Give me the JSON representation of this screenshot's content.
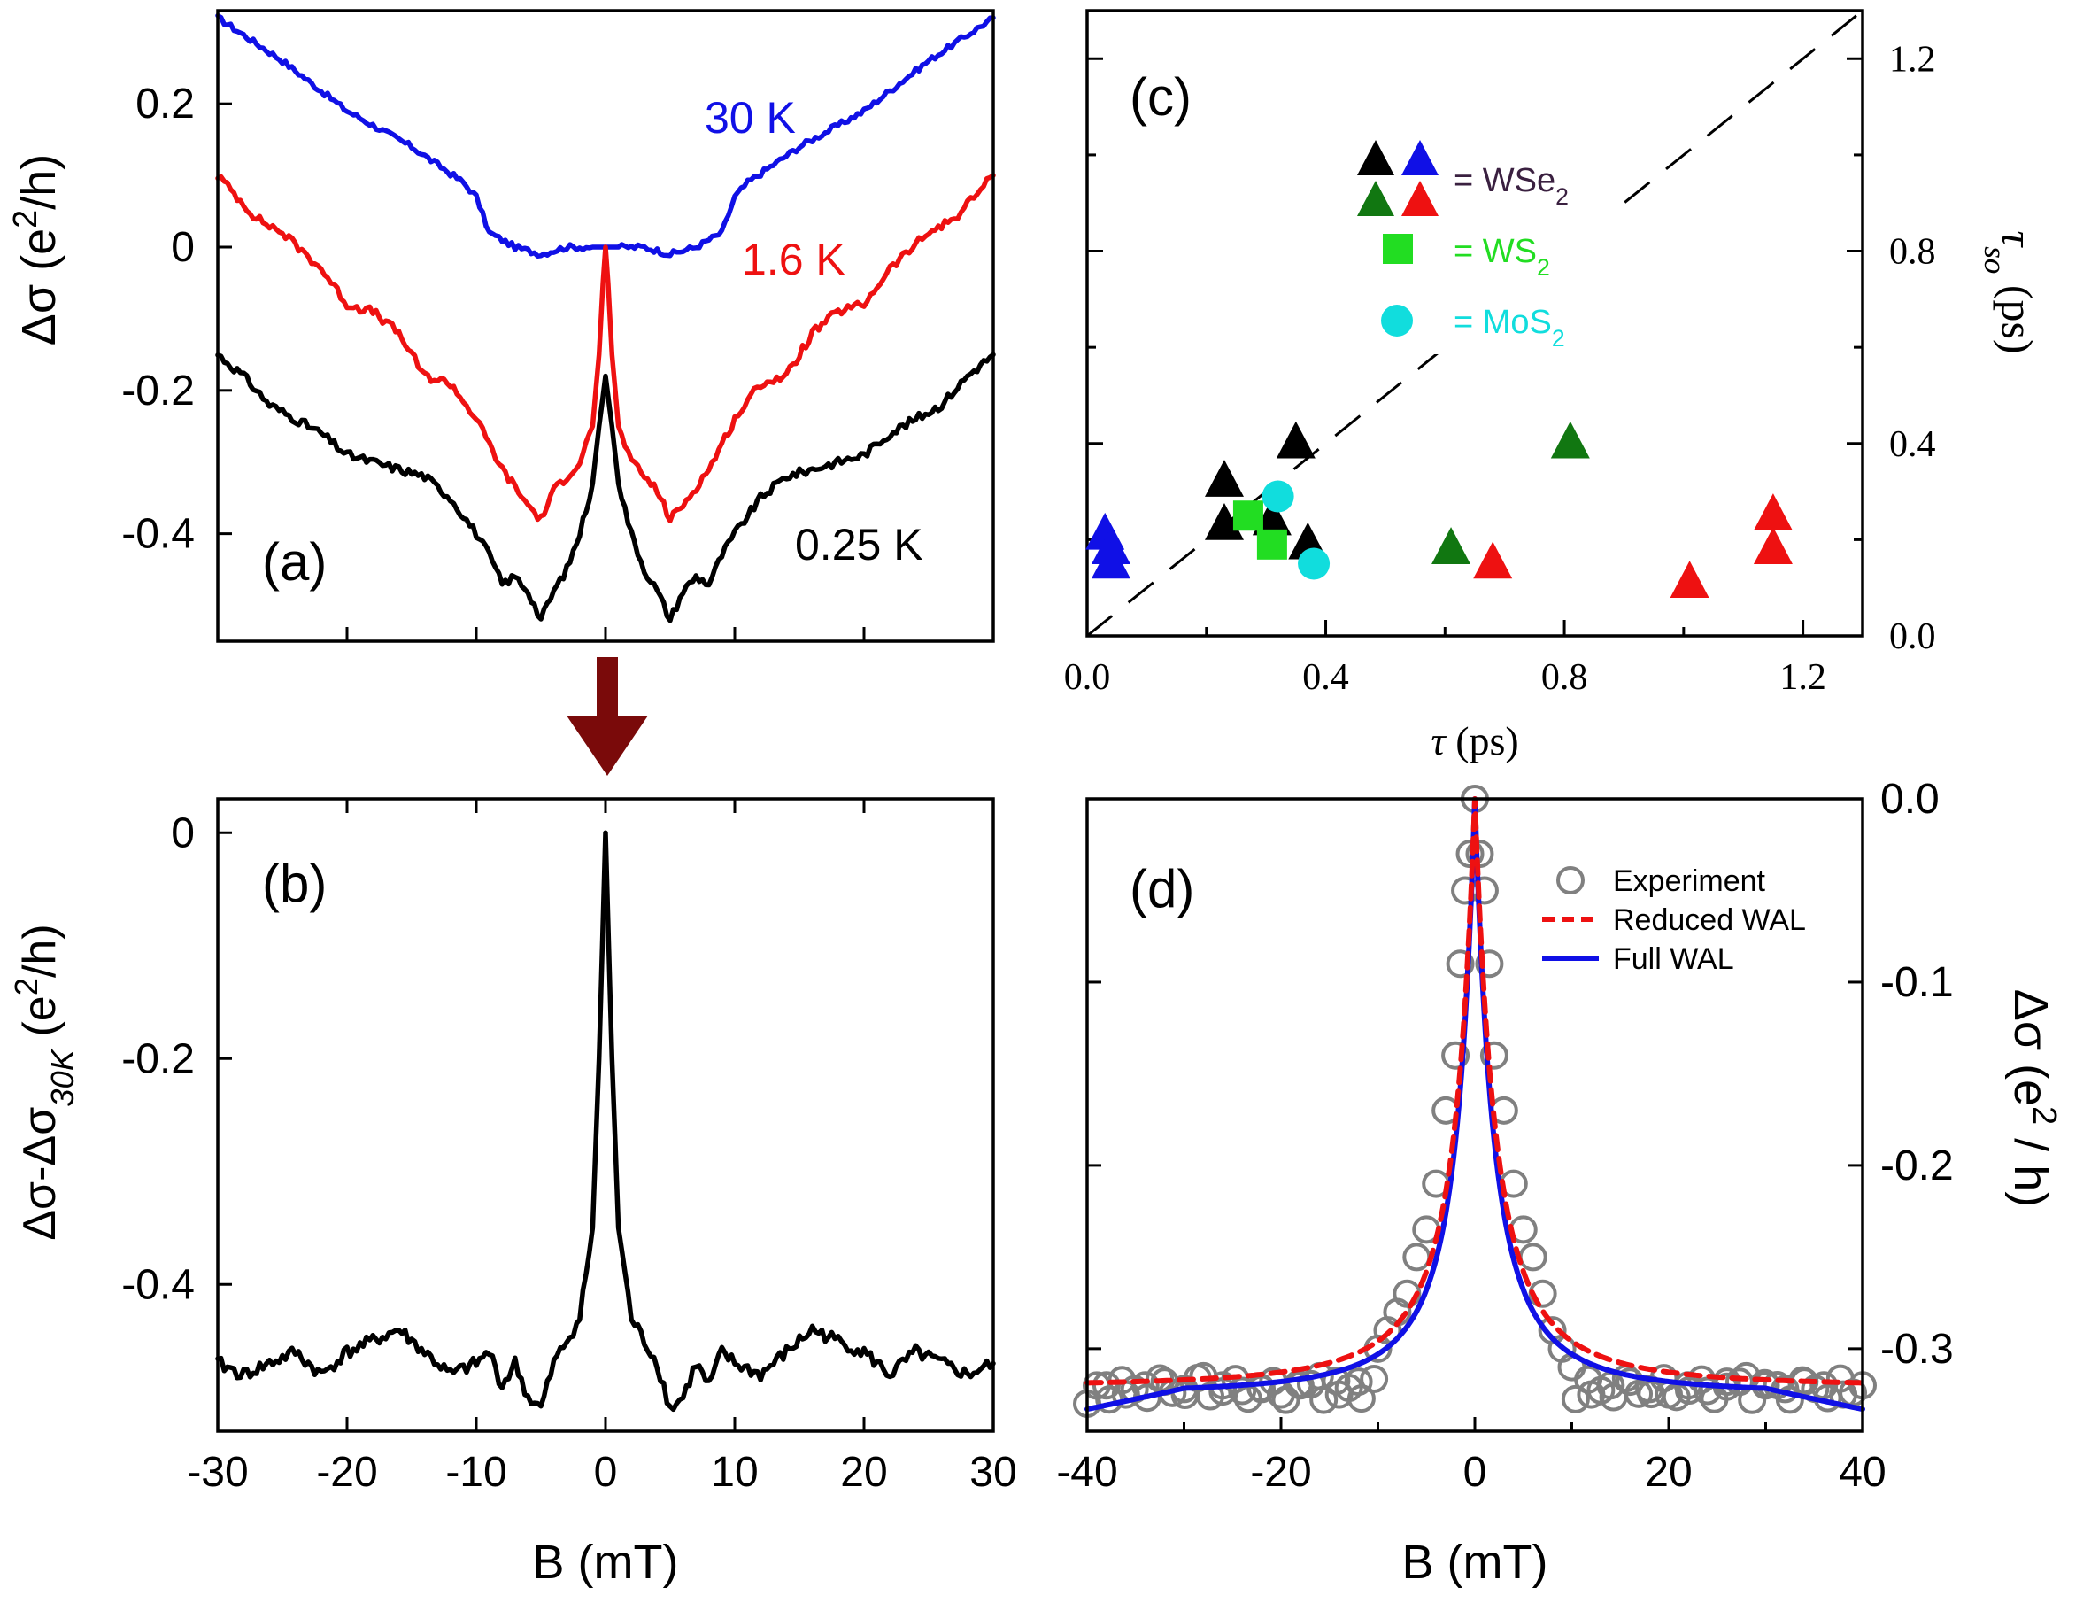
{
  "chart_data": [
    {
      "panel": "(a)",
      "type": "line",
      "xlim": [
        -30,
        30
      ],
      "ylim": [
        -0.55,
        0.33
      ],
      "ylabel_main": "Δσ (e",
      "ylabel_sup": "2",
      "ylabel_end": "/h)",
      "yticks": [
        0.2,
        0,
        -0.2,
        -0.4
      ],
      "ytick_labels": [
        "0.2",
        "0",
        "-0.2",
        "-0.4"
      ],
      "series": [
        {
          "name": "30 K",
          "color": "#1010e6",
          "x": [
            -30,
            -25,
            -20,
            -15,
            -11,
            -10,
            -9,
            -7,
            -5,
            -3,
            -1,
            0,
            1,
            3,
            5,
            7,
            9,
            10,
            11,
            15,
            20,
            25,
            30
          ],
          "y": [
            0.32,
            0.26,
            0.19,
            0.14,
            0.09,
            0.07,
            0.02,
            0.0,
            -0.01,
            0.0,
            0.0,
            0.0,
            0.0,
            0.0,
            -0.01,
            0.0,
            0.02,
            0.07,
            0.09,
            0.14,
            0.19,
            0.26,
            0.32
          ]
        },
        {
          "name": "1.6 K",
          "color": "#ee1111",
          "x": [
            -30,
            -27,
            -25,
            -22,
            -20,
            -18,
            -16,
            -14,
            -12,
            -10,
            -8,
            -6,
            -5,
            -4,
            -2,
            -1,
            -0.5,
            -0.2,
            0,
            0.2,
            0.5,
            1,
            2,
            4,
            5,
            6,
            8,
            10,
            12,
            14,
            16,
            18,
            20,
            22,
            25,
            27,
            30
          ],
          "y": [
            0.1,
            0.04,
            0.02,
            -0.03,
            -0.08,
            -0.09,
            -0.12,
            -0.18,
            -0.19,
            -0.24,
            -0.31,
            -0.36,
            -0.38,
            -0.34,
            -0.3,
            -0.25,
            -0.15,
            -0.05,
            0.0,
            -0.05,
            -0.15,
            -0.25,
            -0.3,
            -0.34,
            -0.38,
            -0.36,
            -0.31,
            -0.24,
            -0.19,
            -0.18,
            -0.12,
            -0.09,
            -0.08,
            -0.03,
            0.02,
            0.04,
            0.1
          ]
        },
        {
          "name": "0.25 K",
          "color": "#000000",
          "x": [
            -30,
            -28,
            -26,
            -24,
            -22,
            -20,
            -18,
            -16,
            -14,
            -12,
            -10,
            -9,
            -8,
            -7,
            -6,
            -5,
            -4,
            -3,
            -2,
            -1,
            -0.5,
            0,
            0.5,
            1,
            2,
            3,
            4,
            5,
            6,
            7,
            8,
            9,
            10,
            12,
            14,
            16,
            18,
            20,
            22,
            24,
            26,
            28,
            30
          ],
          "y": [
            -0.15,
            -0.18,
            -0.22,
            -0.24,
            -0.26,
            -0.29,
            -0.3,
            -0.31,
            -0.32,
            -0.35,
            -0.4,
            -0.43,
            -0.47,
            -0.46,
            -0.48,
            -0.52,
            -0.48,
            -0.45,
            -0.4,
            -0.33,
            -0.25,
            -0.18,
            -0.25,
            -0.33,
            -0.4,
            -0.45,
            -0.48,
            -0.52,
            -0.48,
            -0.46,
            -0.47,
            -0.43,
            -0.4,
            -0.35,
            -0.32,
            -0.31,
            -0.3,
            -0.29,
            -0.26,
            -0.24,
            -0.22,
            -0.18,
            -0.15
          ]
        }
      ],
      "annotations": [
        "30 K",
        "1.6 K",
        "0.25 K"
      ]
    },
    {
      "panel": "(b)",
      "type": "line",
      "xlim": [
        -30,
        30
      ],
      "ylim": [
        -0.53,
        0.03
      ],
      "xlabel": "B (mT)",
      "ylabel_main": "Δσ-Δσ",
      "ylabel_sub": "30K",
      "ylabel_end": " (e",
      "ylabel_sup": "2",
      "ylabel_close": "/h)",
      "xticks": [
        -30,
        -20,
        -10,
        0,
        10,
        20,
        30
      ],
      "xtick_labels": [
        "-30",
        "-20",
        "-10",
        "0",
        "10",
        "20",
        "30"
      ],
      "yticks": [
        0,
        -0.2,
        -0.4
      ],
      "ytick_labels": [
        "0",
        "-0.2",
        "-0.4"
      ],
      "series": [
        {
          "name": "0.25 K − 30 K",
          "color": "#000000",
          "x": [
            -30,
            -28,
            -26,
            -24,
            -22,
            -20,
            -18,
            -16,
            -14,
            -12,
            -10,
            -9,
            -8,
            -7,
            -6,
            -5,
            -4,
            -3,
            -2,
            -1,
            -0.5,
            0,
            0.5,
            1,
            2,
            3,
            4,
            5,
            6,
            7,
            8,
            9,
            10,
            12,
            14,
            16,
            18,
            20,
            22,
            24,
            26,
            28,
            30
          ],
          "y": [
            -0.47,
            -0.48,
            -0.47,
            -0.46,
            -0.48,
            -0.46,
            -0.45,
            -0.44,
            -0.46,
            -0.48,
            -0.47,
            -0.46,
            -0.49,
            -0.47,
            -0.5,
            -0.51,
            -0.47,
            -0.45,
            -0.43,
            -0.35,
            -0.2,
            0.0,
            -0.2,
            -0.35,
            -0.43,
            -0.45,
            -0.47,
            -0.51,
            -0.5,
            -0.47,
            -0.49,
            -0.46,
            -0.47,
            -0.48,
            -0.46,
            -0.44,
            -0.45,
            -0.46,
            -0.48,
            -0.46,
            -0.47,
            -0.48,
            -0.47
          ]
        }
      ]
    },
    {
      "panel": "(c)",
      "type": "scatter",
      "xlim": [
        0,
        1.3
      ],
      "ylim": [
        0,
        1.3
      ],
      "xlabel": "τ (ps)",
      "ylabel": "τ",
      "ylabel_sub": "so",
      "ylabel_end": " (ps)",
      "xticks": [
        0.0,
        0.4,
        0.8,
        1.2
      ],
      "xtick_labels": [
        "0.0",
        "0.4",
        "0.8",
        "1.2"
      ],
      "yticks": [
        0.0,
        0.4,
        0.8,
        1.2
      ],
      "ytick_labels": [
        "0.0",
        "0.4",
        "0.8",
        "1.2"
      ],
      "diagonal": true,
      "legend": [
        {
          "label": "= WSe",
          "sub": "2",
          "color": "#3a2040"
        },
        {
          "label": "= WS",
          "sub": "2",
          "color": "#22dd22"
        },
        {
          "label": "= MoS",
          "sub": "2",
          "color": "#11dddd"
        }
      ],
      "series": [
        {
          "name": "WSe2 black",
          "marker": "triangle",
          "color": "#000000",
          "x": [
            0.23,
            0.23,
            0.31,
            0.35,
            0.37
          ],
          "y": [
            0.32,
            0.23,
            0.24,
            0.4,
            0.19
          ]
        },
        {
          "name": "WSe2 blue",
          "marker": "triangle",
          "color": "#1010e6",
          "x": [
            0.03,
            0.04,
            0.04
          ],
          "y": [
            0.21,
            0.18,
            0.15
          ]
        },
        {
          "name": "WSe2 green",
          "marker": "triangle",
          "color": "#117711",
          "x": [
            0.61,
            0.81
          ],
          "y": [
            0.18,
            0.4
          ]
        },
        {
          "name": "WSe2 red",
          "marker": "triangle",
          "color": "#ee1111",
          "x": [
            0.68,
            1.01,
            1.15,
            1.15
          ],
          "y": [
            0.15,
            0.11,
            0.25,
            0.18
          ]
        },
        {
          "name": "WS2",
          "marker": "square",
          "color": "#22dd22",
          "x": [
            0.27,
            0.31
          ],
          "y": [
            0.25,
            0.19
          ]
        },
        {
          "name": "MoS2",
          "marker": "circle",
          "color": "#11dddd",
          "x": [
            0.32,
            0.38
          ],
          "y": [
            0.29,
            0.15
          ]
        }
      ]
    },
    {
      "panel": "(d)",
      "type": "line",
      "xlim": [
        -40,
        40
      ],
      "ylim": [
        -0.345,
        0.0
      ],
      "xlabel": "B (mT)",
      "ylabel": "Δσ (e",
      "ylabel_sup": "2",
      "ylabel_end": " / h)",
      "xticks": [
        -40,
        -20,
        0,
        20,
        40
      ],
      "xtick_labels": [
        "-40",
        "-20",
        "0",
        "20",
        "40"
      ],
      "yticks": [
        0.0,
        -0.1,
        -0.2,
        -0.3
      ],
      "ytick_labels": [
        "0.0",
        "-0.1",
        "-0.2",
        "-0.3"
      ],
      "legend": [
        "Experiment",
        "Reduced WAL",
        "Full WAL"
      ],
      "series": [
        {
          "name": "Experiment",
          "type": "scatter",
          "color": "#808080",
          "x": [
            -40,
            -38,
            -36,
            -34,
            -32,
            -30,
            -28,
            -26,
            -24,
            -22,
            -20,
            -18,
            -16,
            -14,
            -12,
            -10,
            -9,
            -8,
            -7,
            -6,
            -5,
            -4,
            -3,
            -2,
            -1.5,
            -1,
            -0.5,
            0,
            0.5,
            1,
            1.5,
            2,
            3,
            4,
            5,
            6,
            7,
            8,
            9,
            10,
            12,
            14,
            16,
            18,
            20,
            22,
            24,
            26,
            28,
            30,
            32,
            34,
            36,
            38,
            40
          ],
          "y": [
            -0.33,
            -0.32,
            -0.325,
            -0.32,
            -0.318,
            -0.322,
            -0.315,
            -0.32,
            -0.323,
            -0.322,
            -0.325,
            -0.32,
            -0.315,
            -0.325,
            -0.318,
            -0.3,
            -0.29,
            -0.28,
            -0.27,
            -0.25,
            -0.235,
            -0.21,
            -0.17,
            -0.14,
            -0.09,
            -0.05,
            -0.03,
            0.0,
            -0.03,
            -0.05,
            -0.09,
            -0.14,
            -0.17,
            -0.21,
            -0.235,
            -0.25,
            -0.27,
            -0.29,
            -0.3,
            -0.31,
            -0.325,
            -0.32,
            -0.318,
            -0.322,
            -0.325,
            -0.32,
            -0.323,
            -0.318,
            -0.315,
            -0.32,
            -0.322,
            -0.318,
            -0.32,
            -0.325,
            -0.32
          ]
        },
        {
          "name": "Reduced WAL",
          "type": "lorentz",
          "color": "#ee1111",
          "floor": -0.321,
          "width": 2.2
        },
        {
          "name": "Full WAL",
          "type": "lorentz",
          "color": "#1010e6",
          "floor": -0.325,
          "width": 2.0,
          "edge": -0.335
        }
      ]
    }
  ]
}
